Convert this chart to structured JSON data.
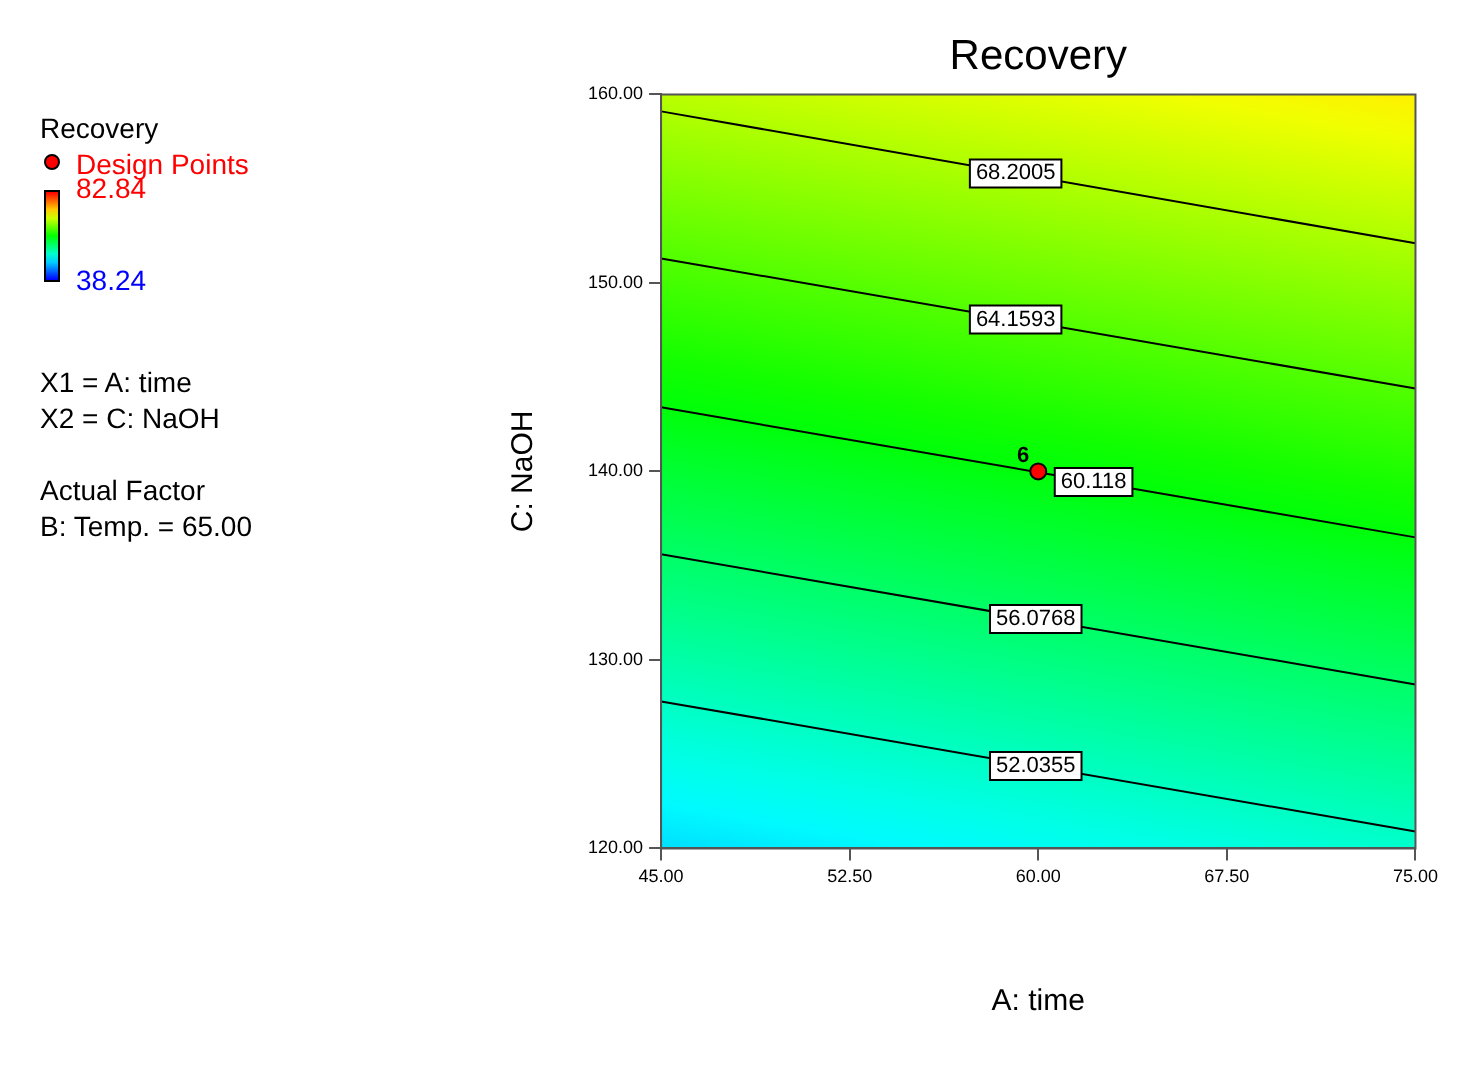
{
  "chart_data": {
    "type": "line",
    "title": "Recovery",
    "xlabel": "A: time",
    "ylabel": "C: NaOH",
    "legend_title": "Recovery",
    "legend": "left",
    "clim": [
      38.24,
      82.84
    ],
    "cticks": [
      82.84,
      38.24
    ],
    "xlim": [
      45,
      75
    ],
    "ylim": [
      120,
      160
    ],
    "xticks": [
      {
        "value": 45,
        "label": "45.00"
      },
      {
        "value": 52.5,
        "label": "52.50"
      },
      {
        "value": 60,
        "label": "60.00"
      },
      {
        "value": 67.5,
        "label": "67.50"
      },
      {
        "value": 75,
        "label": "75.00"
      }
    ],
    "yticks": [
      {
        "value": 120,
        "label": "120.00"
      },
      {
        "value": 130,
        "label": "130.00"
      },
      {
        "value": 140,
        "label": "140.00"
      },
      {
        "value": 150,
        "label": "150.00"
      },
      {
        "value": 160,
        "label": "160.00"
      }
    ],
    "series": [
      {
        "name": "68.2005",
        "color": "#000000",
        "x": [
          45,
          75
        ],
        "values": [
          159.1,
          152.1
        ]
      },
      {
        "name": "64.1593",
        "color": "#000000",
        "x": [
          45,
          75
        ],
        "values": [
          151.3,
          144.4
        ]
      },
      {
        "name": "60.118",
        "color": "#000000",
        "x": [
          45,
          75
        ],
        "values": [
          143.4,
          136.5
        ]
      },
      {
        "name": "56.0768",
        "color": "#000000",
        "x": [
          45,
          75
        ],
        "values": [
          135.6,
          128.7
        ]
      },
      {
        "name": "52.0355",
        "color": "#000000",
        "x": [
          45,
          75
        ],
        "values": [
          127.8,
          120.9
        ]
      },
      {
        "name": "Design Points",
        "type": "scatter",
        "marker": "circle",
        "color": "#ff0000",
        "x": [
          60
        ],
        "values": [
          140
        ]
      }
    ],
    "annotations": [
      "X1 = A: time",
      "X2 = C: NaOH",
      "Actual Factor",
      "B: Temp. = 65.00",
      {
        "text": "6",
        "x": 59.4,
        "y": 140
      }
    ]
  }
}
